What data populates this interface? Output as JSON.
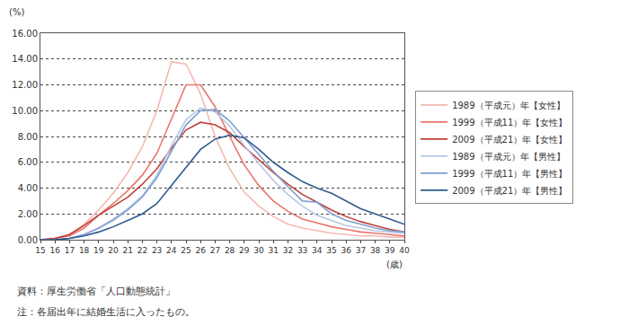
{
  "chart_data": {
    "type": "line",
    "y_label": "(%)",
    "x_label": "(歳)",
    "notes": [
      "資料：厚生労働省「人口動態統計」",
      "注：各届出年に結婚生活に入ったもの。"
    ],
    "x": [
      15,
      16,
      17,
      18,
      19,
      20,
      21,
      22,
      23,
      24,
      25,
      26,
      27,
      28,
      29,
      30,
      31,
      32,
      33,
      34,
      35,
      36,
      37,
      38,
      39,
      40
    ],
    "xlim": [
      15,
      40
    ],
    "xticks": [
      15,
      16,
      17,
      18,
      19,
      20,
      21,
      22,
      23,
      24,
      25,
      26,
      27,
      28,
      29,
      30,
      31,
      32,
      33,
      34,
      35,
      36,
      37,
      38,
      39,
      40
    ],
    "ylim": [
      0,
      16
    ],
    "yticks": [
      {
        "value": 0,
        "label": "0.00"
      },
      {
        "value": 2,
        "label": "2.00"
      },
      {
        "value": 4,
        "label": "4.00"
      },
      {
        "value": 6,
        "label": "6.00"
      },
      {
        "value": 8,
        "label": "8.00"
      },
      {
        "value": 10,
        "label": "10.00"
      },
      {
        "value": 12,
        "label": "12.00"
      },
      {
        "value": 14,
        "label": "14.00"
      },
      {
        "value": 16,
        "label": "16.00"
      }
    ],
    "grid": true,
    "legend": "right",
    "series": [
      {
        "name": "1989（平成元）年【女性】",
        "color": "#f4b9b2",
        "values": [
          0,
          0.1,
          0.4,
          1.2,
          2.3,
          3.6,
          5.2,
          7.2,
          10.0,
          13.8,
          13.6,
          11.3,
          8.0,
          5.5,
          3.7,
          2.6,
          1.8,
          1.2,
          0.9,
          0.7,
          0.5,
          0.4,
          0.3,
          0.3,
          0.2,
          0.2
        ]
      },
      {
        "name": "1999（平成11）年【女性】",
        "color": "#e8766b",
        "values": [
          0,
          0.1,
          0.3,
          0.9,
          1.9,
          2.8,
          3.8,
          5.0,
          6.7,
          9.3,
          12.0,
          12.0,
          10.3,
          8.0,
          5.8,
          4.2,
          3.0,
          2.2,
          1.6,
          1.3,
          1.0,
          0.8,
          0.6,
          0.5,
          0.4,
          0.3
        ]
      },
      {
        "name": "2009（平成21）年【女性】",
        "color": "#c0403a",
        "values": [
          0,
          0.1,
          0.4,
          1.1,
          1.9,
          2.6,
          3.3,
          4.3,
          5.5,
          7.1,
          8.5,
          9.1,
          8.9,
          8.3,
          7.2,
          6.2,
          5.2,
          4.3,
          3.5,
          2.9,
          2.3,
          1.8,
          1.4,
          1.1,
          0.8,
          0.6
        ]
      },
      {
        "name": "1989（平成元）年【男性】",
        "color": "#b7c8e6",
        "values": [
          0,
          0,
          0.1,
          0.4,
          0.9,
          1.6,
          2.4,
          3.4,
          5.0,
          7.3,
          9.3,
          10.2,
          9.9,
          8.8,
          7.3,
          5.9,
          4.6,
          3.5,
          2.6,
          1.9,
          1.5,
          1.1,
          0.9,
          0.7,
          0.6,
          0.5
        ]
      },
      {
        "name": "1999（平成11）年【男性】",
        "color": "#7f9fd1",
        "values": [
          0,
          0,
          0.1,
          0.4,
          0.9,
          1.5,
          2.3,
          3.3,
          4.8,
          6.9,
          8.9,
          10.0,
          10.1,
          9.2,
          7.9,
          6.6,
          5.3,
          4.1,
          3.0,
          2.9,
          2.0,
          1.5,
          1.2,
          0.9,
          0.7,
          0.6
        ]
      },
      {
        "name": "2009（平成21）年【男性】",
        "color": "#2f5b8e",
        "values": [
          0,
          0,
          0.1,
          0.3,
          0.6,
          1.0,
          1.5,
          2.0,
          2.8,
          4.2,
          5.6,
          7.0,
          7.8,
          8.1,
          7.9,
          7.0,
          6.0,
          5.2,
          4.5,
          4.0,
          3.6,
          3.0,
          2.4,
          2.0,
          1.6,
          1.2
        ]
      }
    ]
  }
}
